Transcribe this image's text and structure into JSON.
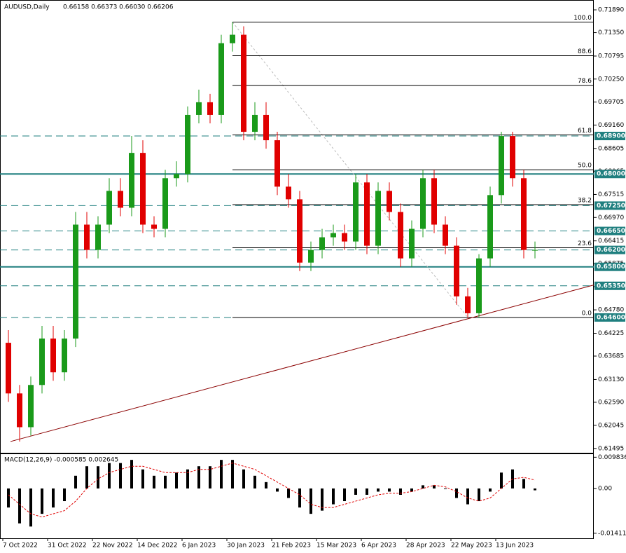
{
  "chart_data": {
    "type": "candlestick",
    "title": "AUDUSD,Daily",
    "header_quote": "0.66158 0.66373 0.66030 0.66206",
    "categories": [
      "7 Oct 2022",
      null,
      null,
      null,
      "31 Oct 2022",
      null,
      null,
      null,
      "22 Nov 2022",
      null,
      null,
      null,
      "14 Dec 2022",
      null,
      null,
      null,
      "6 Jan 2023",
      null,
      null,
      null,
      "30 Jan 2023",
      null,
      null,
      null,
      "21 Feb 2023",
      null,
      null,
      null,
      "15 Mar 2023",
      null,
      null,
      null,
      "6 Apr 2023",
      null,
      null,
      null,
      "28 Apr 2023",
      null,
      null,
      null,
      "22 May 2023",
      null,
      null,
      null,
      "13 Jun 2023",
      null,
      null,
      null
    ],
    "open": [
      0.64,
      0.628,
      0.62,
      0.63,
      0.641,
      0.633,
      0.641,
      0.668,
      0.662,
      0.668,
      0.676,
      0.672,
      0.685,
      0.668,
      0.667,
      0.679,
      0.68,
      0.694,
      0.697,
      0.694,
      0.711,
      0.713,
      0.69,
      0.694,
      0.688,
      0.677,
      0.674,
      0.659,
      0.662,
      0.665,
      0.666,
      0.664,
      0.678,
      0.663,
      0.676,
      0.671,
      0.66,
      0.667,
      0.679,
      0.668,
      0.663,
      0.651,
      0.647,
      0.66,
      0.675,
      0.689,
      0.679,
      0.662
    ],
    "high": [
      0.643,
      0.63,
      0.632,
      0.644,
      0.644,
      0.643,
      0.671,
      0.671,
      0.67,
      0.679,
      0.679,
      0.689,
      0.688,
      0.67,
      0.681,
      0.683,
      0.696,
      0.7,
      0.699,
      0.713,
      0.716,
      0.715,
      0.697,
      0.697,
      0.69,
      0.68,
      0.676,
      0.664,
      0.667,
      0.668,
      0.668,
      0.68,
      0.68,
      0.678,
      0.678,
      0.673,
      0.669,
      0.681,
      0.681,
      0.67,
      0.665,
      0.653,
      0.661,
      0.677,
      0.69,
      0.69,
      0.681,
      0.664
    ],
    "low": [
      0.626,
      0.6166,
      0.618,
      0.628,
      0.631,
      0.631,
      0.639,
      0.66,
      0.66,
      0.666,
      0.67,
      0.67,
      0.666,
      0.665,
      0.665,
      0.677,
      0.678,
      0.692,
      0.692,
      0.692,
      0.709,
      0.688,
      0.688,
      0.686,
      0.675,
      0.672,
      0.657,
      0.657,
      0.66,
      0.663,
      0.662,
      0.662,
      0.661,
      0.661,
      0.669,
      0.658,
      0.658,
      0.665,
      0.666,
      0.661,
      0.649,
      0.646,
      0.646,
      0.658,
      0.673,
      0.677,
      0.66,
      0.66
    ],
    "close": [
      0.628,
      0.62,
      0.63,
      0.641,
      0.633,
      0.641,
      0.668,
      0.662,
      0.668,
      0.676,
      0.672,
      0.685,
      0.668,
      0.667,
      0.679,
      0.68,
      0.694,
      0.697,
      0.694,
      0.711,
      0.713,
      0.69,
      0.694,
      0.688,
      0.677,
      0.674,
      0.659,
      0.662,
      0.665,
      0.666,
      0.664,
      0.678,
      0.663,
      0.676,
      0.671,
      0.66,
      0.667,
      0.679,
      0.668,
      0.663,
      0.651,
      0.647,
      0.66,
      0.675,
      0.689,
      0.679,
      0.662,
      0.662
    ],
    "up_color": "#1a9a1a",
    "down_color": "#e00000",
    "ylim": [
      0.6141,
      0.7209
    ],
    "yticks": [
      {
        "value": 0.7189,
        "label": "0.71890"
      },
      {
        "value": 0.7135,
        "label": "0.71350"
      },
      {
        "value": 0.70795,
        "label": "0.70795"
      },
      {
        "value": 0.7025,
        "label": "0.70250"
      },
      {
        "value": 0.69705,
        "label": "0.69705"
      },
      {
        "value": 0.6916,
        "label": "0.69160"
      },
      {
        "value": 0.68605,
        "label": "0.68605"
      },
      {
        "value": 0.68065,
        "label": "0.68065"
      },
      {
        "value": 0.67515,
        "label": "0.67515"
      },
      {
        "value": 0.6697,
        "label": "0.66970"
      },
      {
        "value": 0.66415,
        "label": "0.66415"
      },
      {
        "value": 0.65875,
        "label": "0.65875"
      },
      {
        "value": 0.6533,
        "label": "0.65330"
      },
      {
        "value": 0.6478,
        "label": "0.64780"
      },
      {
        "value": 0.64225,
        "label": "0.64225"
      },
      {
        "value": 0.63685,
        "label": "0.63685"
      },
      {
        "value": 0.6313,
        "label": "0.63130"
      },
      {
        "value": 0.6259,
        "label": "0.62590"
      },
      {
        "value": 0.62045,
        "label": "0.62045"
      },
      {
        "value": 0.61495,
        "label": "0.61495"
      }
    ],
    "levels": [
      {
        "value": 0.689,
        "label": "0.68900",
        "style": "dashed"
      },
      {
        "value": 0.68,
        "label": "0.68000",
        "style": "solid"
      },
      {
        "value": 0.6725,
        "label": "0.67250",
        "style": "dashed"
      },
      {
        "value": 0.6665,
        "label": "0.66650",
        "style": "dashed"
      },
      {
        "value": 0.662,
        "label": "0.66200",
        "style": "dashed"
      },
      {
        "value": 0.658,
        "label": "0.65800",
        "style": "solid"
      },
      {
        "value": 0.6535,
        "label": "0.65350",
        "style": "dashed"
      },
      {
        "value": 0.646,
        "label": "0.64600",
        "style": "dashed"
      }
    ],
    "level_color": "#1f7f7f",
    "fib": {
      "high": 0.716,
      "low": 0.646,
      "levels": [
        {
          "value": 100,
          "label": "100.0"
        },
        88.6,
        78.6,
        61.8,
        {
          "value": 50,
          "label": "50.0"
        },
        38.2,
        23.6,
        {
          "value": 0,
          "label": "0.0"
        }
      ]
    },
    "trendline": {
      "color": "#8b0000",
      "values": [
        0.6166,
        0.6537
      ]
    },
    "macd": {
      "label": "MACD(12,26,9) -0.000585 0.002645",
      "ylim": [
        -0.0157,
        0.0108
      ],
      "yticks": [
        0.009836,
        {
          "value": 0,
          "label": "0.00"
        },
        -0.014116
      ],
      "values": [
        -0.006,
        -0.011,
        -0.012,
        -0.008,
        -0.006,
        -0.004,
        0.004,
        0.007,
        0.007,
        0.008,
        0.008,
        0.009,
        0.006,
        0.004,
        0.004,
        0.005,
        0.006,
        0.007,
        0.007,
        0.009,
        0.009,
        0.006,
        0.004,
        0.002,
        -0.001,
        -0.003,
        -0.006,
        -0.008,
        -0.007,
        -0.005,
        -0.004,
        -0.002,
        -0.002,
        -0.001,
        -0.001,
        -0.002,
        -0.001,
        0.001,
        0.001,
        0,
        -0.003,
        -0.005,
        -0.004,
        -0.001,
        0.005,
        0.006,
        0.003,
        -0.000585
      ],
      "signal": [
        -0.002,
        -0.005,
        -0.008,
        -0.009,
        -0.008,
        -0.007,
        -0.004,
        0,
        0.003,
        0.005,
        0.006,
        0.007,
        0.007,
        0.006,
        0.005,
        0.005,
        0.005,
        0.006,
        0.006,
        0.007,
        0.008,
        0.007,
        0.006,
        0.004,
        0.002,
        0,
        -0.002,
        -0.005,
        -0.006,
        -0.006,
        -0.005,
        -0.004,
        -0.003,
        -0.002,
        -0.0015,
        -0.0015,
        -0.001,
        0,
        0.001,
        0.0005,
        -0.001,
        -0.003,
        -0.004,
        -0.003,
        0,
        0.003,
        0.0035,
        0.002645
      ],
      "signal_color": "#e00000"
    }
  }
}
